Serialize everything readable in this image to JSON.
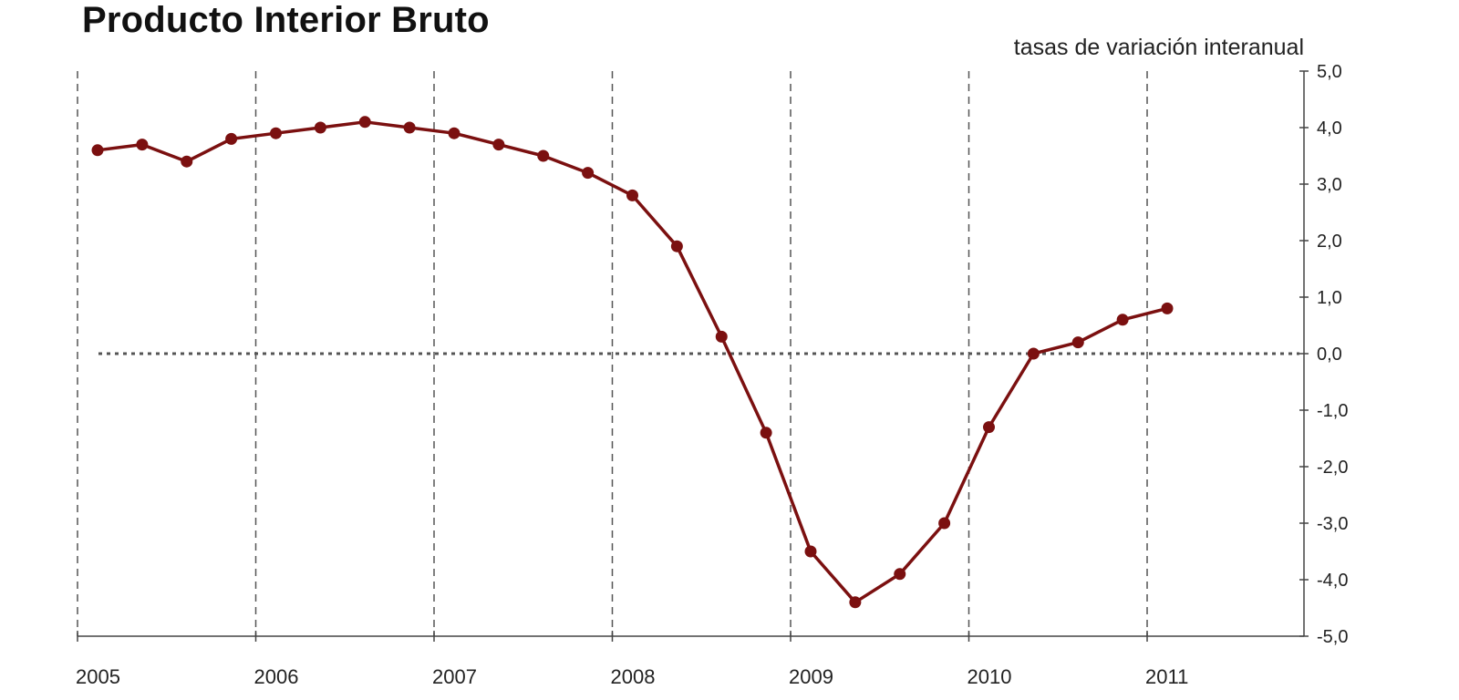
{
  "chart_data": {
    "type": "line",
    "title": "Producto Interior Bruto",
    "subtitle": "tasas de variación interanual",
    "x_labels": [
      "2005",
      "2006",
      "2007",
      "2008",
      "2009",
      "2010",
      "2011"
    ],
    "y_tick_labels": [
      "5,0",
      "4,0",
      "3,0",
      "2,0",
      "1,0",
      "0,0",
      "-1,0",
      "-2,0",
      "-3,0",
      "-4,0",
      "-5,0"
    ],
    "ylim": [
      -5,
      5
    ],
    "y_axis_position": "right",
    "grid": "vertical dashed at year boundaries",
    "reference_line": {
      "y": 0,
      "style": "dotted"
    },
    "series": [
      {
        "color": "#7b1010",
        "x": [
          "2005-Q1",
          "2005-Q2",
          "2005-Q3",
          "2005-Q4",
          "2006-Q1",
          "2006-Q2",
          "2006-Q3",
          "2006-Q4",
          "2007-Q1",
          "2007-Q2",
          "2007-Q3",
          "2007-Q4",
          "2008-Q1",
          "2008-Q2",
          "2008-Q3",
          "2008-Q4",
          "2009-Q1",
          "2009-Q2",
          "2009-Q3",
          "2009-Q4",
          "2010-Q1",
          "2010-Q2",
          "2010-Q3",
          "2010-Q4",
          "2011-Q1"
        ],
        "values": [
          3.6,
          3.7,
          3.4,
          3.8,
          3.9,
          4.0,
          4.1,
          4.0,
          3.9,
          3.7,
          3.5,
          3.2,
          2.8,
          1.9,
          0.3,
          -1.4,
          -3.5,
          -4.4,
          -3.9,
          -3.0,
          -1.3,
          0.0,
          0.2,
          0.6,
          0.8
        ]
      }
    ]
  }
}
